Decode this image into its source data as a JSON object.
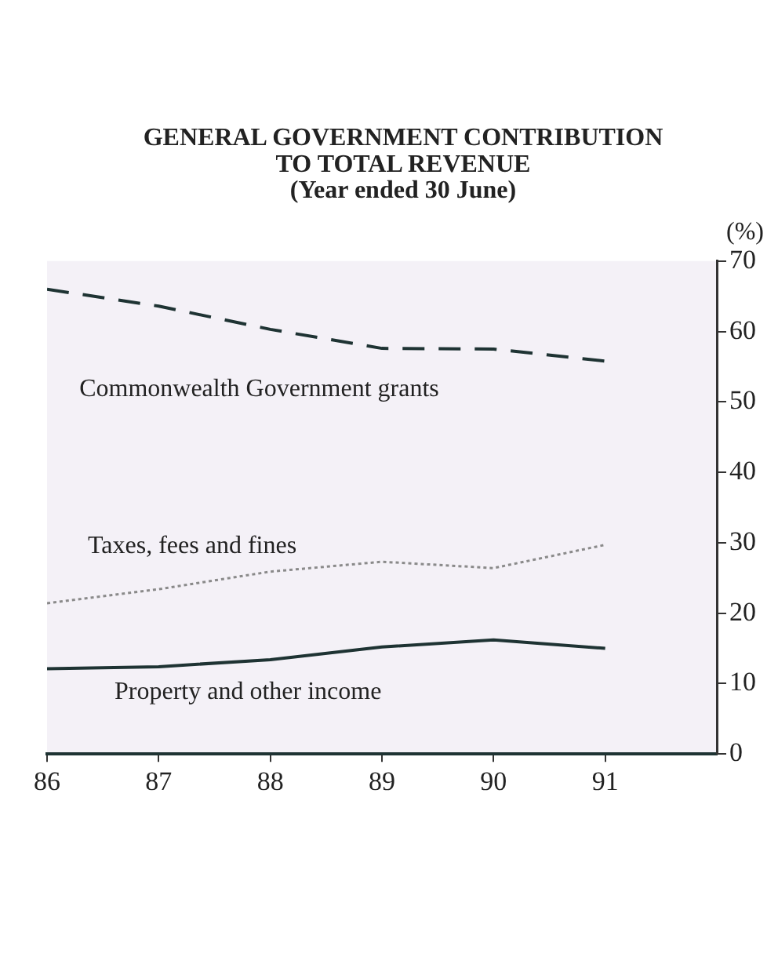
{
  "chart_data": {
    "type": "line",
    "title": "GENERAL GOVERNMENT CONTRIBUTION\nTO TOTAL REVENUE\n(Year ended 30 June)",
    "ylabel": "(%)",
    "x": [
      86,
      87,
      88,
      89,
      90,
      91
    ],
    "xlim": [
      86,
      92
    ],
    "xticks": [
      86,
      87,
      88,
      89,
      90,
      91
    ],
    "ylim": [
      0,
      70
    ],
    "yticks": [
      0,
      10,
      20,
      30,
      40,
      50,
      60,
      70
    ],
    "grid": false,
    "legend": false,
    "marker": "none",
    "series": [
      {
        "name": "Commonwealth Government grants",
        "color": "#1e3333",
        "line_style": "dashed",
        "values": [
          66,
          63.6,
          60.3,
          57.6,
          57.5,
          55.8
        ]
      },
      {
        "name": "Taxes, fees and fines",
        "color": "#8a8a8a",
        "line_style": "dotted",
        "values": [
          21.4,
          23.4,
          25.9,
          27.3,
          26.4,
          29.7
        ]
      },
      {
        "name": "Property and other income",
        "color": "#1e3333",
        "line_style": "solid",
        "values": [
          12.1,
          12.4,
          13.4,
          15.2,
          16.2,
          15.0
        ]
      }
    ]
  }
}
